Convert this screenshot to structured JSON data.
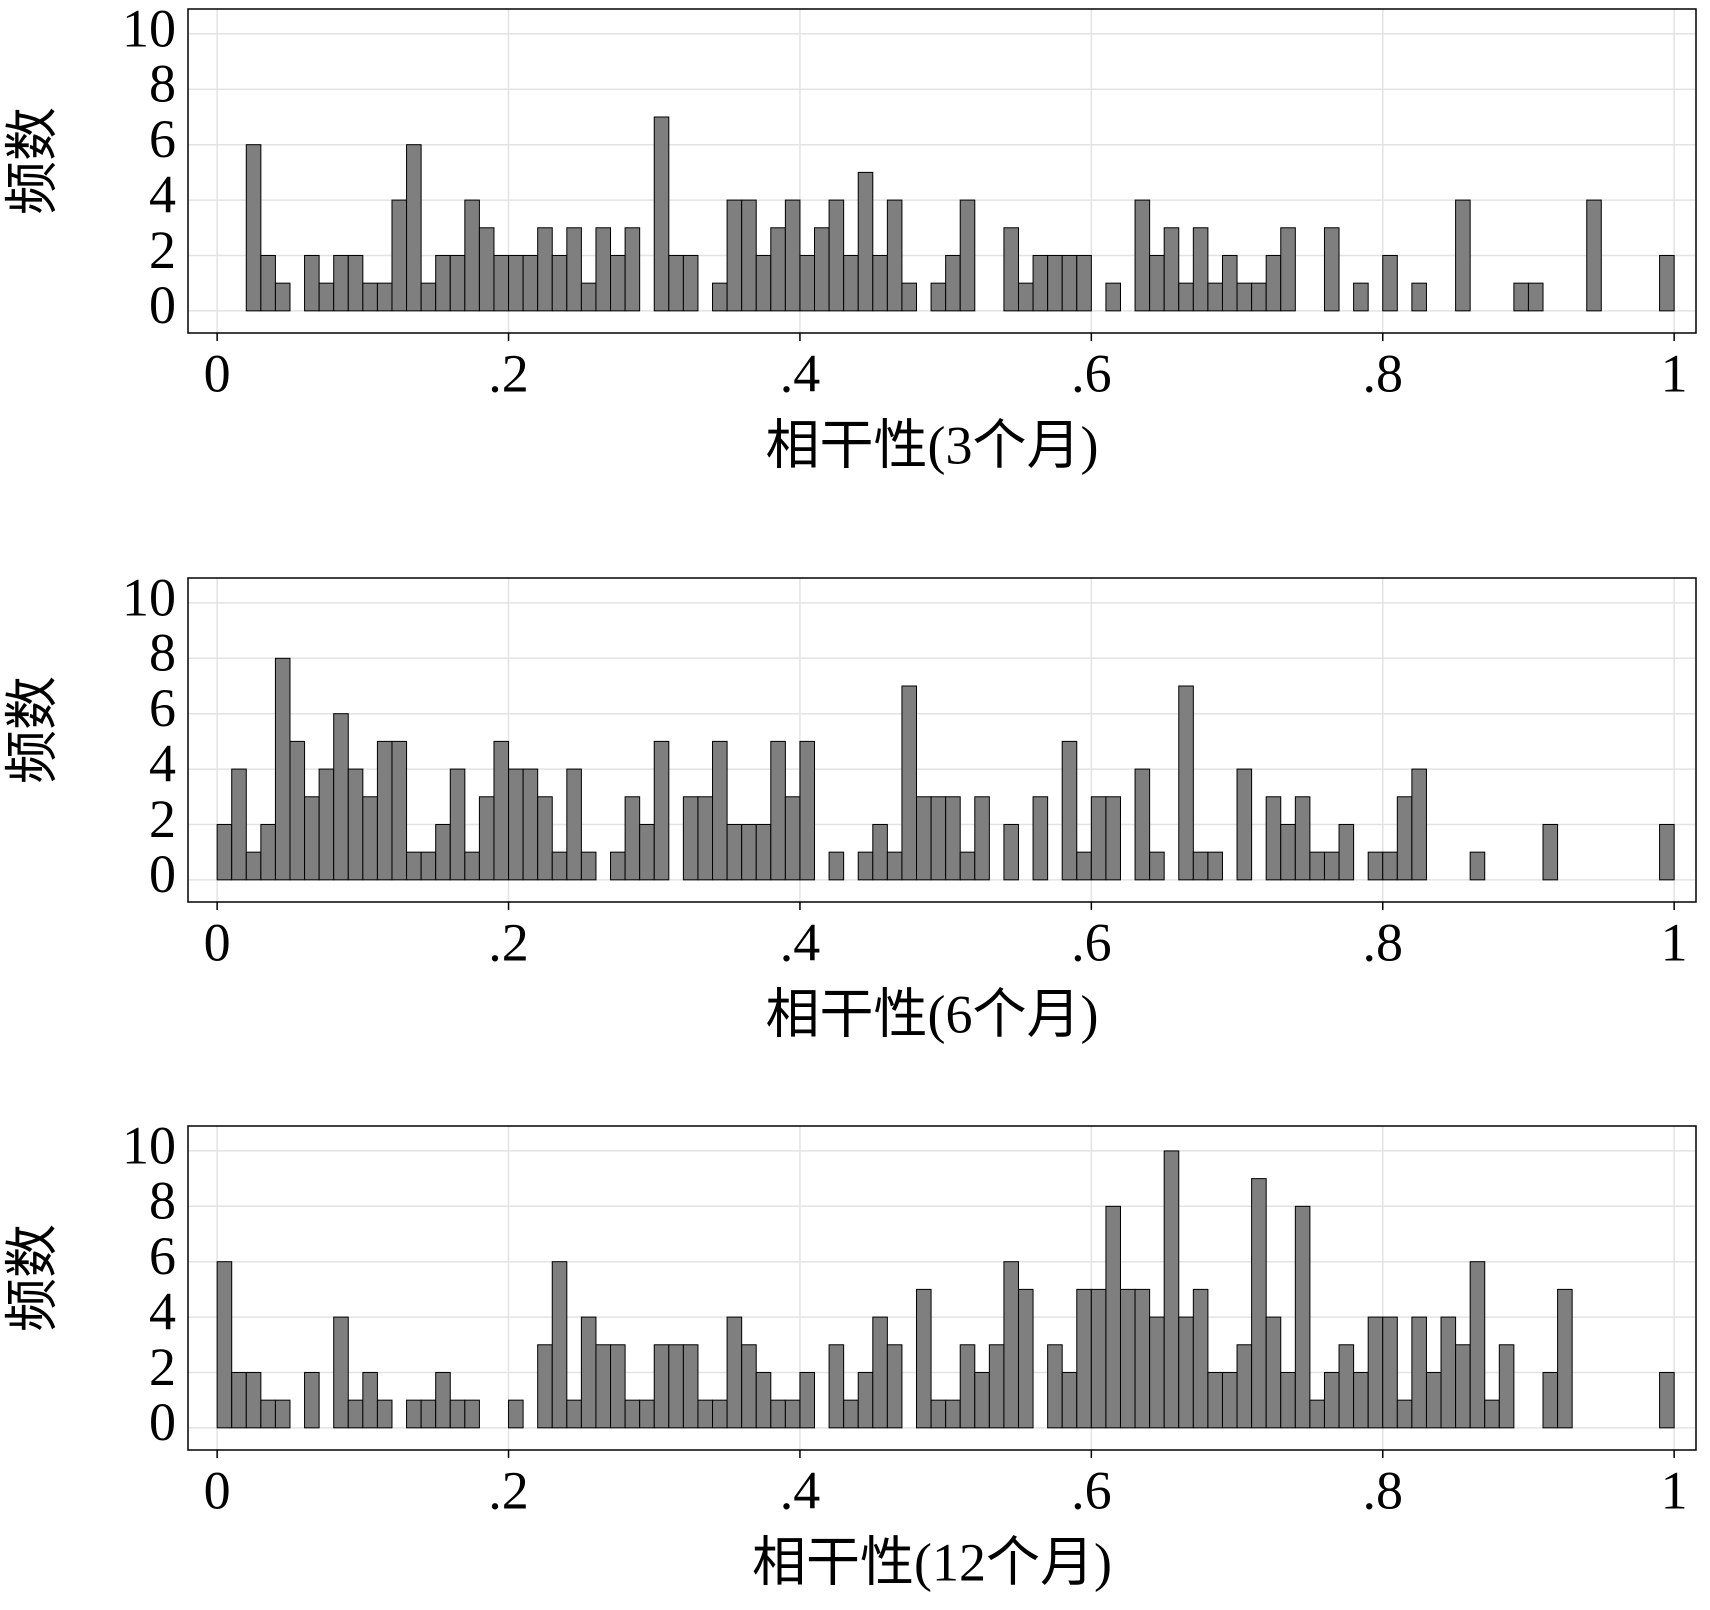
{
  "chart_data": [
    {
      "type": "histogram",
      "xlabel": "相干性(3个月)",
      "ylabel": "频数",
      "color": "#7f7f7f",
      "grid": true,
      "bins": [
        0,
        0.01,
        0.02,
        0.03,
        0.04,
        0.05,
        0.06,
        0.07,
        0.08,
        0.09,
        0.1,
        0.11,
        0.12,
        0.13,
        0.14,
        0.15,
        0.16,
        0.17,
        0.18,
        0.19,
        0.2,
        0.21,
        0.22,
        0.23,
        0.24,
        0.25,
        0.26,
        0.27,
        0.28,
        0.29,
        0.3,
        0.31,
        0.32,
        0.33,
        0.34,
        0.35,
        0.36,
        0.37,
        0.38,
        0.39,
        0.4,
        0.41,
        0.42,
        0.43,
        0.44,
        0.45,
        0.46,
        0.47,
        0.48,
        0.49,
        0.5,
        0.51,
        0.52,
        0.53,
        0.54,
        0.55,
        0.56,
        0.57,
        0.58,
        0.59,
        0.6,
        0.61,
        0.62,
        0.63,
        0.64,
        0.65,
        0.66,
        0.67,
        0.68,
        0.69,
        0.7,
        0.71,
        0.72,
        0.73,
        0.74,
        0.75,
        0.76,
        0.77,
        0.78,
        0.79,
        0.8,
        0.81,
        0.82,
        0.83,
        0.84,
        0.85,
        0.86,
        0.87,
        0.88,
        0.89,
        0.9,
        0.91,
        0.92,
        0.93,
        0.94,
        0.95,
        0.96,
        0.97,
        0.98,
        0.99,
        1
      ],
      "values": [
        0,
        0,
        6,
        2,
        1,
        0,
        2,
        1,
        2,
        2,
        1,
        1,
        4,
        6,
        1,
        2,
        2,
        4,
        3,
        2,
        2,
        2,
        3,
        2,
        3,
        1,
        3,
        2,
        3,
        0,
        7,
        2,
        2,
        0,
        1,
        4,
        4,
        2,
        3,
        4,
        2,
        3,
        4,
        2,
        5,
        2,
        4,
        1,
        0,
        1,
        2,
        4,
        0,
        0,
        3,
        1,
        2,
        2,
        2,
        2,
        0,
        1,
        0,
        4,
        2,
        3,
        1,
        3,
        1,
        2,
        1,
        1,
        2,
        3,
        0,
        0,
        3,
        0,
        1,
        0,
        2,
        0,
        1,
        0,
        0,
        4,
        0,
        0,
        0,
        1,
        1,
        0,
        0,
        0,
        4,
        0,
        0,
        0,
        0,
        2
      ],
      "xlim": [
        -0.02,
        1.015
      ],
      "ylim": [
        -0.8,
        10.9
      ],
      "xticks": [
        0,
        {
          "value": 0.2,
          "label": ".2"
        },
        {
          "value": 0.4,
          "label": ".4"
        },
        {
          "value": 0.6,
          "label": ".6"
        },
        {
          "value": 0.8,
          "label": ".8"
        },
        1
      ],
      "yticks": [
        0,
        2,
        4,
        6,
        8,
        10
      ]
    },
    {
      "type": "histogram",
      "xlabel": "相干性(6个月)",
      "ylabel": "频数",
      "color": "#7f7f7f",
      "grid": true,
      "bins": [
        0,
        0.01,
        0.02,
        0.03,
        0.04,
        0.05,
        0.06,
        0.07,
        0.08,
        0.09,
        0.1,
        0.11,
        0.12,
        0.13,
        0.14,
        0.15,
        0.16,
        0.17,
        0.18,
        0.19,
        0.2,
        0.21,
        0.22,
        0.23,
        0.24,
        0.25,
        0.26,
        0.27,
        0.28,
        0.29,
        0.3,
        0.31,
        0.32,
        0.33,
        0.34,
        0.35,
        0.36,
        0.37,
        0.38,
        0.39,
        0.4,
        0.41,
        0.42,
        0.43,
        0.44,
        0.45,
        0.46,
        0.47,
        0.48,
        0.49,
        0.5,
        0.51,
        0.52,
        0.53,
        0.54,
        0.55,
        0.56,
        0.57,
        0.58,
        0.59,
        0.6,
        0.61,
        0.62,
        0.63,
        0.64,
        0.65,
        0.66,
        0.67,
        0.68,
        0.69,
        0.7,
        0.71,
        0.72,
        0.73,
        0.74,
        0.75,
        0.76,
        0.77,
        0.78,
        0.79,
        0.8,
        0.81,
        0.82,
        0.83,
        0.84,
        0.85,
        0.86,
        0.87,
        0.88,
        0.89,
        0.9,
        0.91,
        0.92,
        0.93,
        0.94,
        0.95,
        0.96,
        0.97,
        0.98,
        0.99,
        1
      ],
      "values": [
        2,
        4,
        1,
        2,
        8,
        5,
        3,
        4,
        6,
        4,
        3,
        5,
        5,
        1,
        1,
        2,
        4,
        1,
        3,
        5,
        4,
        4,
        3,
        1,
        4,
        1,
        0,
        1,
        3,
        2,
        5,
        0,
        3,
        3,
        5,
        2,
        2,
        2,
        5,
        3,
        5,
        0,
        1,
        0,
        1,
        2,
        1,
        7,
        3,
        3,
        3,
        1,
        3,
        0,
        2,
        0,
        3,
        0,
        5,
        1,
        3,
        3,
        0,
        4,
        1,
        0,
        7,
        1,
        1,
        0,
        4,
        0,
        3,
        2,
        3,
        1,
        1,
        2,
        0,
        1,
        1,
        3,
        4,
        0,
        0,
        0,
        1,
        0,
        0,
        0,
        0,
        2,
        0,
        0,
        0,
        0,
        0,
        0,
        0,
        2
      ],
      "xlim": [
        -0.02,
        1.015
      ],
      "ylim": [
        -0.8,
        10.9
      ],
      "xticks": [
        0,
        {
          "value": 0.2,
          "label": ".2"
        },
        {
          "value": 0.4,
          "label": ".4"
        },
        {
          "value": 0.6,
          "label": ".6"
        },
        {
          "value": 0.8,
          "label": ".8"
        },
        1
      ],
      "yticks": [
        0,
        2,
        4,
        6,
        8,
        10
      ]
    },
    {
      "type": "histogram",
      "xlabel": "相干性(12个月)",
      "ylabel": "频数",
      "color": "#7f7f7f",
      "grid": true,
      "bins": [
        0,
        0.01,
        0.02,
        0.03,
        0.04,
        0.05,
        0.06,
        0.07,
        0.08,
        0.09,
        0.1,
        0.11,
        0.12,
        0.13,
        0.14,
        0.15,
        0.16,
        0.17,
        0.18,
        0.19,
        0.2,
        0.21,
        0.22,
        0.23,
        0.24,
        0.25,
        0.26,
        0.27,
        0.28,
        0.29,
        0.3,
        0.31,
        0.32,
        0.33,
        0.34,
        0.35,
        0.36,
        0.37,
        0.38,
        0.39,
        0.4,
        0.41,
        0.42,
        0.43,
        0.44,
        0.45,
        0.46,
        0.47,
        0.48,
        0.49,
        0.5,
        0.51,
        0.52,
        0.53,
        0.54,
        0.55,
        0.56,
        0.57,
        0.58,
        0.59,
        0.6,
        0.61,
        0.62,
        0.63,
        0.64,
        0.65,
        0.66,
        0.67,
        0.68,
        0.69,
        0.7,
        0.71,
        0.72,
        0.73,
        0.74,
        0.75,
        0.76,
        0.77,
        0.78,
        0.79,
        0.8,
        0.81,
        0.82,
        0.83,
        0.84,
        0.85,
        0.86,
        0.87,
        0.88,
        0.89,
        0.9,
        0.91,
        0.92,
        0.93,
        0.94,
        0.95,
        0.96,
        0.97,
        0.98,
        0.99,
        1
      ],
      "values": [
        6,
        2,
        2,
        1,
        1,
        0,
        2,
        0,
        4,
        1,
        2,
        1,
        0,
        1,
        1,
        2,
        1,
        1,
        0,
        0,
        1,
        0,
        3,
        6,
        1,
        4,
        3,
        3,
        1,
        1,
        3,
        3,
        3,
        1,
        1,
        4,
        3,
        2,
        1,
        1,
        2,
        0,
        3,
        1,
        2,
        4,
        3,
        0,
        5,
        1,
        1,
        3,
        2,
        3,
        6,
        5,
        0,
        3,
        2,
        5,
        5,
        8,
        5,
        5,
        4,
        10,
        4,
        5,
        2,
        2,
        3,
        9,
        4,
        2,
        8,
        1,
        2,
        3,
        2,
        4,
        4,
        1,
        4,
        2,
        4,
        3,
        6,
        1,
        3,
        0,
        0,
        2,
        5,
        0,
        0,
        0,
        0,
        0,
        0,
        2
      ],
      "xlim": [
        -0.02,
        1.015
      ],
      "ylim": [
        -0.8,
        10.9
      ],
      "xticks": [
        0,
        {
          "value": 0.2,
          "label": ".2"
        },
        {
          "value": 0.4,
          "label": ".4"
        },
        {
          "value": 0.6,
          "label": ".6"
        },
        {
          "value": 0.8,
          "label": ".8"
        },
        1
      ],
      "yticks": [
        0,
        2,
        4,
        6,
        8,
        10
      ]
    }
  ]
}
